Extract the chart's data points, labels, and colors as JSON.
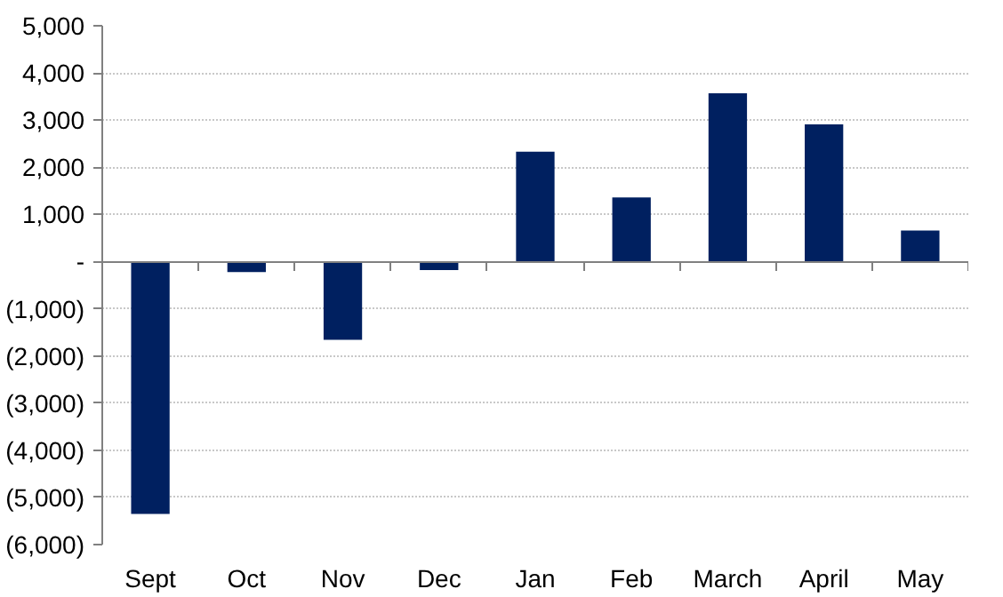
{
  "chart_data": {
    "type": "bar",
    "categories": [
      "Sept",
      "Oct",
      "Nov",
      "Dec",
      "Jan",
      "Feb",
      "March",
      "April",
      "May"
    ],
    "values": [
      -5350,
      -220,
      -1660,
      -180,
      2330,
      1360,
      3570,
      2910,
      660
    ],
    "color": "#002060",
    "ylim": [
      -6000,
      5000
    ],
    "yticks": [
      {
        "value": -6000,
        "label": "(6,000)"
      },
      {
        "value": -5000,
        "label": "(5,000)"
      },
      {
        "value": -4000,
        "label": "(4,000)"
      },
      {
        "value": -3000,
        "label": "(3,000)"
      },
      {
        "value": -2000,
        "label": "(2,000)"
      },
      {
        "value": -1000,
        "label": "(1,000)"
      },
      {
        "value": 0,
        "label": "-"
      },
      {
        "value": 1000,
        "label": "1,000"
      },
      {
        "value": 2000,
        "label": "2,000"
      },
      {
        "value": 3000,
        "label": "3,000"
      },
      {
        "value": 4000,
        "label": "4,000"
      },
      {
        "value": 5000,
        "label": "5,000"
      }
    ],
    "grid": "y"
  }
}
